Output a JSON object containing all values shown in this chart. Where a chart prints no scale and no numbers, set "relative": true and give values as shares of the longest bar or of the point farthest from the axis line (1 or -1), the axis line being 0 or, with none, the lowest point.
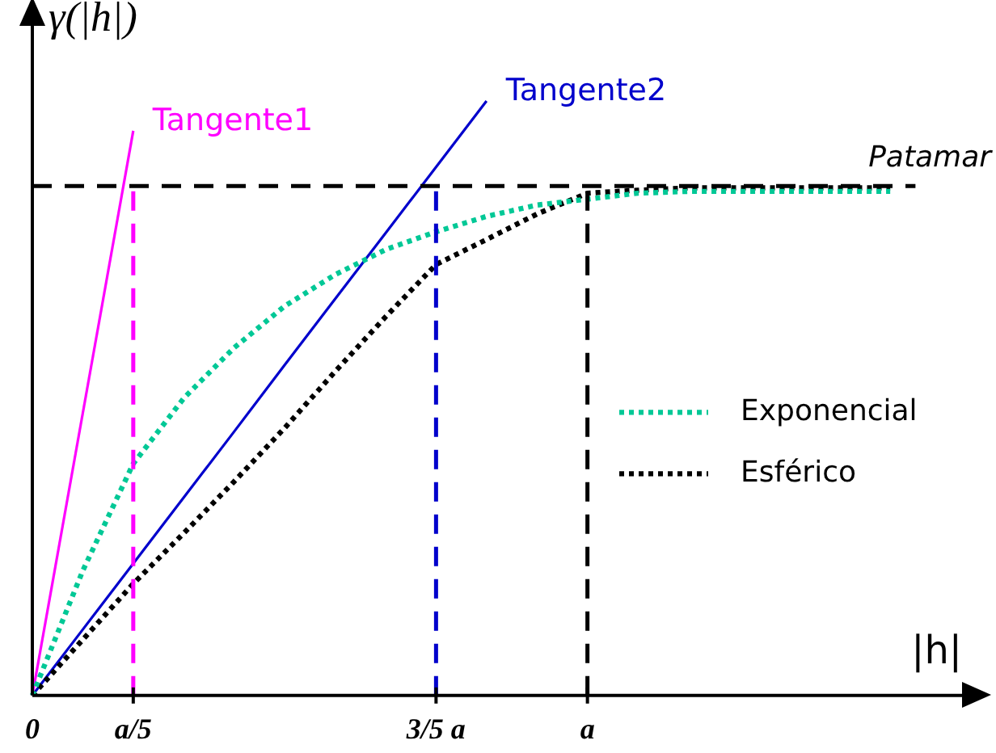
{
  "chart_data": {
    "type": "line",
    "relative": true,
    "xlabel": "|h|",
    "ylabel": "γ(|h|)",
    "categories": [
      "0",
      null,
      "a/5",
      null,
      null,
      null,
      null,
      null,
      "3/5 a",
      null,
      null,
      "a",
      null,
      null,
      null,
      null,
      null,
      null,
      null,
      null
    ],
    "legend": "right",
    "marker": "none",
    "ref_lines": [
      {
        "axis": "y",
        "value": 0.857,
        "label": "Patamar",
        "color": "#000000",
        "line_style": "dashed"
      },
      {
        "axis": "x",
        "value": "a/5",
        "color": "#ff00ff",
        "line_style": "dashed"
      },
      {
        "axis": "x",
        "value": "3/5 a",
        "color": "#0000cc",
        "line_style": "dashed"
      },
      {
        "axis": "x",
        "value": "a",
        "color": "#000000",
        "line_style": "dashed"
      }
    ],
    "series": [
      {
        "name": "Exponencial",
        "color": "#00c896",
        "line_style": "dotted",
        "values": [
          0,
          0.21,
          0.39,
          0.5,
          0.585,
          0.655,
          0.708,
          0.75,
          0.78,
          0.806,
          0.825,
          0.835,
          0.845,
          0.848,
          0.848,
          0.848,
          0.848,
          0.848,
          null,
          null
        ]
      },
      {
        "name": "Esférico",
        "color": "#000000",
        "line_style": "dotted",
        "values": [
          0,
          0.094,
          0.188,
          0.273,
          0.36,
          0.45,
          0.545,
          0.637,
          0.725,
          0.767,
          0.81,
          0.845,
          0.85,
          0.854,
          0.854,
          0.854,
          0.854,
          0.854,
          null,
          null
        ]
      },
      {
        "name": "Tangente1",
        "color": "#ff00ff",
        "line_style": "solid",
        "values": [
          0,
          0.475,
          0.95,
          null,
          null,
          null,
          null,
          null,
          null,
          null,
          null,
          null,
          null,
          null,
          null,
          null,
          null,
          null,
          null,
          null
        ]
      },
      {
        "name": "Tangente2",
        "color": "#0000cc",
        "line_style": "solid",
        "values": [
          0,
          0.111,
          0.222,
          0.333,
          0.444,
          0.556,
          0.667,
          0.778,
          0.889,
          1,
          null,
          null,
          null,
          null,
          null,
          null,
          null,
          null,
          null,
          null
        ]
      }
    ]
  }
}
